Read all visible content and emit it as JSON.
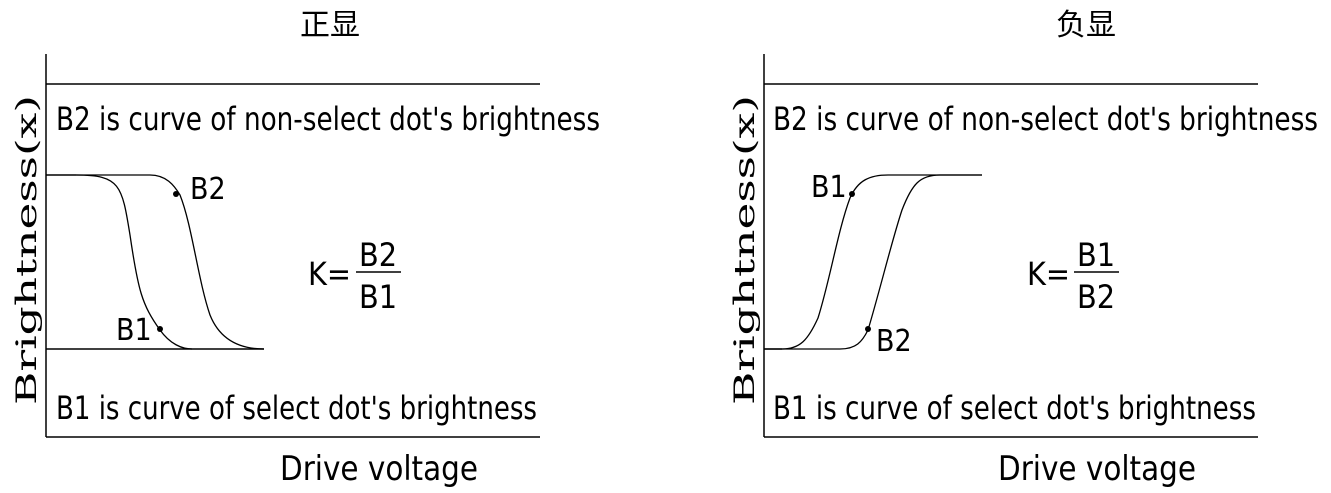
{
  "panels": [
    {
      "title": "正显",
      "ylabel": "Brightness(x)",
      "xlabel": "Drive voltage",
      "top_note": "B2 is curve of non-select dot's brightness",
      "bottom_note": "B1 is curve of select dot's brightness",
      "curve_labels": {
        "first": "B2",
        "second": "B1"
      },
      "formula": {
        "prefix": "K=",
        "numerator": "B2",
        "denominator": "B1"
      }
    },
    {
      "title": "负显",
      "ylabel": "Brightness(x)",
      "xlabel": "Drive voltage",
      "top_note": "B2 is curve of non-select dot's brightness",
      "bottom_note": "B1 is curve of select dot's brightness",
      "curve_labels": {
        "first": "B1",
        "second": "B2"
      },
      "formula": {
        "prefix": "K=",
        "numerator": "B1",
        "denominator": "B2"
      }
    }
  ],
  "colors": {
    "line": "#000000",
    "background": "#ffffff"
  }
}
